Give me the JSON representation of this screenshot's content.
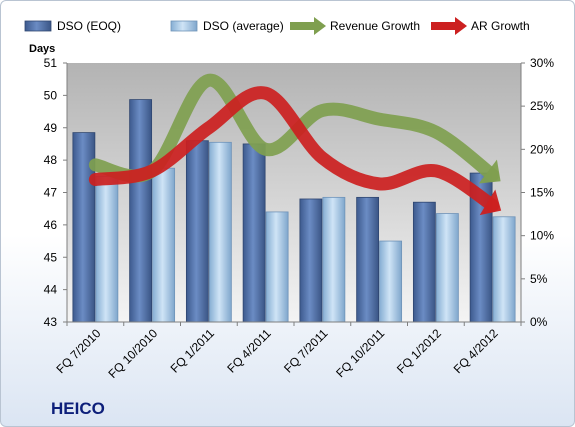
{
  "company": "HEICO",
  "chart_data": {
    "type": "bar",
    "ylabel": "Days",
    "ylim": [
      43,
      51
    ],
    "y2lim": [
      0,
      30
    ],
    "yticks": [
      "43",
      "44",
      "45",
      "46",
      "47",
      "48",
      "49",
      "50",
      "51"
    ],
    "y2ticks": [
      "0%",
      "5%",
      "10%",
      "15%",
      "20%",
      "25%",
      "30%"
    ],
    "categories": [
      "FQ 7/2010",
      "FQ 10/2010",
      "FQ 1/2011",
      "FQ 4/2011",
      "FQ 7/2011",
      "FQ 10/2011",
      "FQ 1/2012",
      "FQ 4/2012"
    ],
    "series": [
      {
        "name": "DSO (EOQ)",
        "type": "bar",
        "axis": "left",
        "color": "#4f6fa8",
        "values": [
          48.85,
          49.87,
          48.6,
          48.5,
          46.8,
          46.85,
          46.7,
          47.6
        ]
      },
      {
        "name": "DSO (average)",
        "type": "bar",
        "axis": "left",
        "color": "#a9cbe8",
        "values": [
          47.5,
          47.75,
          48.55,
          46.4,
          46.85,
          45.5,
          46.35,
          46.25
        ]
      },
      {
        "name": "Revenue Growth",
        "type": "line",
        "axis": "right",
        "color": "#7f9f4f",
        "values": [
          18.2,
          17.5,
          28.0,
          20.0,
          24.5,
          23.5,
          22.0,
          17.0
        ]
      },
      {
        "name": "AR Growth",
        "type": "line",
        "axis": "right",
        "color": "#cc2020",
        "values": [
          16.5,
          17.5,
          22.5,
          26.5,
          19.0,
          16.0,
          17.5,
          13.5
        ]
      }
    ],
    "legend": "top",
    "grid": false
  }
}
